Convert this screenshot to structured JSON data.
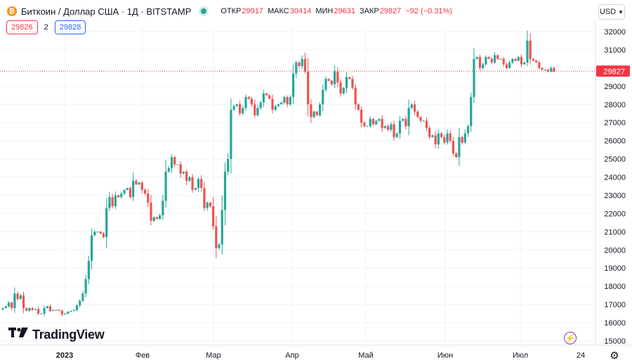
{
  "header": {
    "symbol_icon": "bitcoin-icon",
    "title": "Биткоин / Доллар США · 1Д · BITSTAMP",
    "status_icon": "market-status-dot",
    "ohlc": {
      "open_label": "ОТКР",
      "open_value": "29917",
      "high_label": "МАКС",
      "high_value": "30414",
      "low_label": "МИН",
      "low_value": "29631",
      "close_label": "ЗАКР",
      "close_value": "29827",
      "change": "−92 (−0.31%)"
    },
    "currency": "USD"
  },
  "quote": {
    "bid": "29826",
    "spread": "2",
    "ask": "29828"
  },
  "brand": {
    "name": "TradingView",
    "icon": "tradingview-logo"
  },
  "colors": {
    "up": "#26a69a",
    "down": "#ef5350",
    "price_line": "#f23645",
    "grid": "#f0f3fa",
    "text": "#131722"
  },
  "chart_data": {
    "type": "candlestick",
    "title": "Биткоин / Доллар США · 1Д · BITSTAMP",
    "ylim": [
      15000,
      32500
    ],
    "y_ticks": [
      15000,
      16000,
      17000,
      18000,
      19000,
      20000,
      21000,
      22000,
      23000,
      24000,
      25000,
      26000,
      27000,
      28000,
      29000,
      30000,
      31000,
      32000
    ],
    "x_labels": [
      "2023",
      "Фев",
      "Мар",
      "Апр",
      "Май",
      "Июн",
      "Июл",
      "24"
    ],
    "last_price": 29827,
    "last_price_label": "29827",
    "close": [
      16800,
      16900,
      17100,
      16800,
      17600,
      17300,
      17500,
      16800,
      16650,
      16800,
      16700,
      16750,
      16500,
      16500,
      16800,
      16900,
      16650,
      16700,
      16700,
      16650,
      16450,
      16500,
      16600,
      16650,
      16700,
      16950,
      17200,
      17600,
      18400,
      19400,
      20800,
      21000,
      21000,
      20900,
      20700,
      22300,
      22900,
      22400,
      23000,
      22900,
      23100,
      23300,
      23400,
      22900,
      23800,
      23600,
      23700,
      23300,
      23100,
      22600,
      21600,
      21800,
      21700,
      21900,
      22700,
      24300,
      24500,
      25100,
      24700,
      24700,
      24200,
      24300,
      23800,
      24000,
      23300,
      23400,
      23900,
      23400,
      22300,
      22600,
      22400,
      21300,
      20100,
      20300,
      22200,
      24300,
      25000,
      27700,
      27900,
      28000,
      27500,
      27800,
      28400,
      28300,
      28000,
      27400,
      27800,
      28100,
      28600,
      28500,
      28300,
      27700,
      27900,
      28000,
      28100,
      28400,
      28000,
      28400,
      29700,
      30300,
      30100,
      30500,
      29800,
      28000,
      27300,
      27600,
      27400,
      28000,
      28800,
      29400,
      29300,
      29100,
      29800,
      29200,
      28600,
      28900,
      29500,
      29400,
      28900,
      28000,
      27700,
      27000,
      26800,
      26800,
      27200,
      26900,
      27100,
      27200,
      26700,
      26800,
      26600,
      26900,
      26200,
      26400,
      27100,
      27200,
      26800,
      27800,
      28000,
      27600,
      27300,
      27100,
      27100,
      26700,
      26200,
      26300,
      25800,
      26400,
      26200,
      25900,
      26400,
      26000,
      25300,
      25100,
      26200,
      25900,
      26400,
      26800,
      28400,
      30500,
      30600,
      30000,
      30200,
      30600,
      30500,
      30300,
      30700,
      30500,
      30500,
      30200,
      30000,
      30300,
      30500,
      30400,
      30600,
      30200,
      30300,
      31500,
      30500,
      30400,
      30300,
      30000,
      29900,
      29900,
      29800,
      30000,
      29800
    ],
    "candle_interval": "1 day",
    "series": [
      {
        "name": "BTCUSD",
        "up_color": "#26a69a",
        "down_color": "#ef5350"
      }
    ]
  },
  "controls": {
    "flash_icon": "lightning-icon",
    "settings_icon": "gear-icon"
  }
}
